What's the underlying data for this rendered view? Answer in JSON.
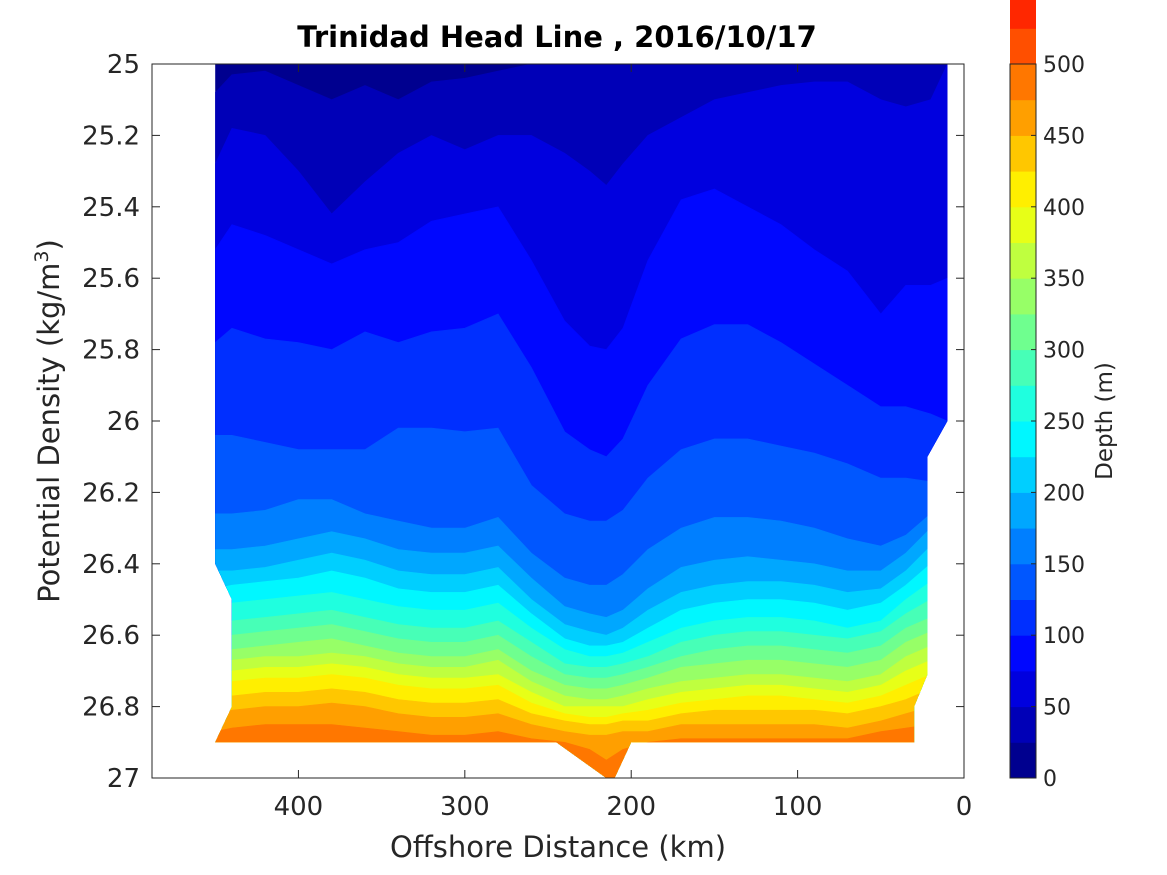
{
  "chart_data": {
    "type": "contour",
    "title": "Trinidad Head Line , 2016/10/17",
    "xlabel": "Offshore Distance (km)",
    "ylabel": "Potential Density (kg/m^3)",
    "ylabel_parts": {
      "main": "Potential Density (kg/m",
      "superscript": "3",
      "close": ")"
    },
    "x_axis": {
      "range": [
        488,
        0
      ],
      "reversed": true,
      "ticks": [
        400,
        300,
        200,
        100,
        0
      ],
      "tick_labels": [
        "400",
        "300",
        "200",
        "100",
        "0"
      ]
    },
    "y_axis": {
      "range": [
        25,
        27
      ],
      "reversed": true,
      "ticks": [
        25,
        25.2,
        25.4,
        25.6,
        25.8,
        26,
        26.2,
        26.4,
        26.6,
        26.8,
        27
      ],
      "tick_labels": [
        "25",
        "25.2",
        "25.4",
        "25.6",
        "25.8",
        "26",
        "26.2",
        "26.4",
        "26.6",
        "26.8",
        "27"
      ]
    },
    "colorbar": {
      "label": "Depth (m)",
      "range": [
        0,
        500
      ],
      "ticks": [
        0,
        50,
        100,
        150,
        200,
        250,
        300,
        350,
        400,
        450,
        500
      ],
      "tick_labels": [
        "0",
        "50",
        "100",
        "150",
        "200",
        "250",
        "300",
        "350",
        "400",
        "450",
        "500"
      ],
      "level_step": 25,
      "colormap": [
        "#00008f",
        "#0000b7",
        "#0000df",
        "#0007ff",
        "#002fff",
        "#0057ff",
        "#007fff",
        "#00a7ff",
        "#00cfff",
        "#00f7ff",
        "#1fffdf",
        "#47ffb7",
        "#6fff8f",
        "#97ff67",
        "#bfff3f",
        "#e7ff17",
        "#ffef00",
        "#ffc700",
        "#ff9f00",
        "#ff7700",
        "#ff4f00",
        "#ff2700",
        "#ff0000",
        "#d70000",
        "#af0000"
      ]
    },
    "contour_x": [
      450,
      440,
      420,
      400,
      380,
      360,
      340,
      320,
      300,
      280,
      260,
      240,
      225,
      215,
      205,
      190,
      170,
      150,
      130,
      110,
      90,
      70,
      50,
      35,
      20,
      10
    ],
    "contour_levels": [
      {
        "depth": 25,
        "sigma": [
          25.08,
          25.03,
          25.02,
          25.06,
          25.1,
          25.06,
          25.1,
          25.05,
          25.04,
          25.02,
          25.0,
          25.0,
          25.0,
          25.0,
          25.0,
          25.0,
          25.0,
          25.0,
          25.0,
          25.0,
          25.0,
          25.0,
          25.0,
          25.0,
          25.0,
          25.0
        ]
      },
      {
        "depth": 50,
        "sigma": [
          25.28,
          25.18,
          25.2,
          25.3,
          25.42,
          25.33,
          25.25,
          25.2,
          25.24,
          25.2,
          25.2,
          25.25,
          25.3,
          25.34,
          25.28,
          25.2,
          25.15,
          25.1,
          25.08,
          25.06,
          25.05,
          25.05,
          25.1,
          25.12,
          25.1,
          25.0
        ]
      },
      {
        "depth": 75,
        "sigma": [
          25.52,
          25.45,
          25.48,
          25.52,
          25.56,
          25.52,
          25.5,
          25.44,
          25.42,
          25.4,
          25.55,
          25.72,
          25.79,
          25.8,
          25.74,
          25.55,
          25.38,
          25.35,
          25.4,
          25.45,
          25.52,
          25.58,
          25.7,
          25.62,
          25.62,
          25.6
        ]
      },
      {
        "depth": 100,
        "sigma": [
          25.78,
          25.74,
          25.77,
          25.78,
          25.8,
          25.75,
          25.78,
          25.75,
          25.74,
          25.7,
          25.85,
          26.03,
          26.08,
          26.1,
          26.05,
          25.9,
          25.77,
          25.73,
          25.73,
          25.78,
          25.84,
          25.9,
          25.96,
          25.96,
          25.98,
          26.0
        ]
      },
      {
        "depth": 125,
        "sigma": [
          26.04,
          26.04,
          26.06,
          26.08,
          26.08,
          26.08,
          26.02,
          26.02,
          26.03,
          26.02,
          26.18,
          26.26,
          26.28,
          26.28,
          26.25,
          26.16,
          26.08,
          26.05,
          26.05,
          26.07,
          26.09,
          26.12,
          26.16,
          26.16,
          26.17,
          26.12
        ]
      },
      {
        "depth": 150,
        "sigma": [
          26.26,
          26.26,
          26.25,
          26.22,
          26.22,
          26.26,
          26.28,
          26.3,
          26.3,
          26.27,
          26.37,
          26.44,
          26.46,
          26.46,
          26.43,
          26.36,
          26.3,
          26.27,
          26.27,
          26.28,
          26.3,
          26.33,
          26.35,
          26.32,
          26.26,
          26.18
        ]
      },
      {
        "depth": 175,
        "sigma": [
          26.36,
          26.36,
          26.35,
          26.33,
          26.31,
          26.33,
          26.36,
          26.37,
          26.37,
          26.35,
          26.44,
          26.52,
          26.54,
          26.55,
          26.53,
          26.47,
          26.41,
          26.39,
          26.38,
          26.39,
          26.4,
          26.42,
          26.42,
          26.37,
          26.3,
          26.22
        ]
      },
      {
        "depth": 200,
        "sigma": [
          26.42,
          26.42,
          26.41,
          26.39,
          26.37,
          26.39,
          26.42,
          26.43,
          26.43,
          26.41,
          26.5,
          26.57,
          26.59,
          26.6,
          26.58,
          26.53,
          26.48,
          26.46,
          26.45,
          26.45,
          26.46,
          26.48,
          26.47,
          26.42,
          26.35,
          26.28
        ]
      },
      {
        "depth": 225,
        "sigma": [
          26.47,
          26.46,
          26.45,
          26.44,
          26.42,
          26.44,
          26.47,
          26.48,
          26.48,
          26.46,
          26.54,
          26.61,
          26.63,
          26.63,
          26.62,
          26.58,
          26.53,
          26.51,
          26.5,
          26.5,
          26.51,
          26.53,
          26.51,
          26.46,
          26.4,
          26.34
        ]
      },
      {
        "depth": 250,
        "sigma": [
          26.52,
          26.51,
          26.5,
          26.49,
          26.48,
          26.5,
          26.52,
          26.53,
          26.53,
          26.51,
          26.58,
          26.64,
          26.66,
          26.66,
          26.65,
          26.62,
          26.58,
          26.56,
          26.55,
          26.55,
          26.56,
          26.58,
          26.56,
          26.5,
          26.45,
          26.4
        ]
      },
      {
        "depth": 275,
        "sigma": [
          26.57,
          26.56,
          26.55,
          26.54,
          26.53,
          26.55,
          26.57,
          26.58,
          26.58,
          26.56,
          26.62,
          26.68,
          26.69,
          26.69,
          26.68,
          26.66,
          26.62,
          26.6,
          26.59,
          26.59,
          26.6,
          26.61,
          26.59,
          26.54,
          26.5,
          26.46
        ]
      },
      {
        "depth": 300,
        "sigma": [
          26.61,
          26.6,
          26.59,
          26.58,
          26.57,
          26.59,
          26.61,
          26.62,
          26.62,
          26.6,
          26.66,
          26.71,
          26.72,
          26.72,
          26.71,
          26.69,
          26.66,
          26.64,
          26.63,
          26.63,
          26.64,
          26.65,
          26.63,
          26.58,
          26.55,
          26.52
        ]
      },
      {
        "depth": 325,
        "sigma": [
          26.65,
          26.64,
          26.63,
          26.62,
          26.61,
          26.63,
          26.65,
          26.66,
          26.66,
          26.64,
          26.7,
          26.74,
          26.75,
          26.75,
          26.74,
          26.72,
          26.69,
          26.68,
          26.67,
          26.67,
          26.68,
          26.69,
          26.67,
          26.62,
          26.59,
          26.57
        ]
      },
      {
        "depth": 350,
        "sigma": [
          26.68,
          26.67,
          26.66,
          26.66,
          26.65,
          26.66,
          26.68,
          26.69,
          26.69,
          26.67,
          26.73,
          26.77,
          26.78,
          26.78,
          26.77,
          26.75,
          26.73,
          26.72,
          26.71,
          26.71,
          26.72,
          26.73,
          26.71,
          26.66,
          26.63,
          26.61
        ]
      },
      {
        "depth": 375,
        "sigma": [
          26.71,
          26.7,
          26.69,
          26.69,
          26.68,
          26.69,
          26.71,
          26.72,
          26.72,
          26.71,
          26.76,
          26.8,
          26.8,
          26.8,
          26.8,
          26.78,
          26.76,
          26.75,
          26.74,
          26.74,
          26.75,
          26.76,
          26.74,
          26.7,
          26.67,
          26.65
        ]
      },
      {
        "depth": 400,
        "sigma": [
          26.74,
          26.73,
          26.72,
          26.72,
          26.71,
          26.72,
          26.74,
          26.75,
          26.75,
          26.74,
          26.79,
          26.82,
          26.83,
          26.83,
          26.82,
          26.81,
          26.79,
          26.78,
          26.77,
          26.77,
          26.78,
          26.79,
          26.77,
          26.74,
          26.71,
          26.69
        ]
      },
      {
        "depth": 425,
        "sigma": [
          26.78,
          26.77,
          26.76,
          26.76,
          26.75,
          26.76,
          26.78,
          26.79,
          26.79,
          26.78,
          26.82,
          26.84,
          26.85,
          26.85,
          26.84,
          26.84,
          26.82,
          26.81,
          26.81,
          26.81,
          26.81,
          26.82,
          26.8,
          26.78,
          26.75,
          26.73
        ]
      },
      {
        "depth": 450,
        "sigma": [
          26.82,
          26.81,
          26.8,
          26.8,
          26.79,
          26.8,
          26.82,
          26.83,
          26.83,
          26.82,
          26.85,
          26.87,
          26.88,
          26.88,
          26.87,
          26.87,
          26.85,
          26.85,
          26.85,
          26.85,
          26.85,
          26.86,
          26.84,
          26.82,
          26.8,
          26.77
        ]
      },
      {
        "depth": 475,
        "sigma": [
          26.87,
          26.86,
          26.85,
          26.85,
          26.85,
          26.86,
          26.87,
          26.88,
          26.88,
          26.87,
          26.89,
          26.9,
          26.92,
          26.95,
          26.92,
          26.9,
          26.89,
          26.89,
          26.89,
          26.89,
          26.89,
          26.89,
          26.87,
          26.86,
          26.85,
          26.82
        ]
      }
    ],
    "data_outline": [
      [
        450,
        25.0
      ],
      [
        450,
        26.4
      ],
      [
        440,
        26.5
      ],
      [
        440,
        26.8
      ],
      [
        450,
        26.9
      ],
      [
        245,
        26.9
      ],
      [
        215,
        27.0
      ],
      [
        210,
        27.0
      ],
      [
        200,
        26.9
      ],
      [
        30,
        26.9
      ],
      [
        30,
        26.8
      ],
      [
        22,
        26.71
      ],
      [
        22,
        26.1
      ],
      [
        10,
        26.0
      ],
      [
        10,
        25.0
      ]
    ]
  }
}
